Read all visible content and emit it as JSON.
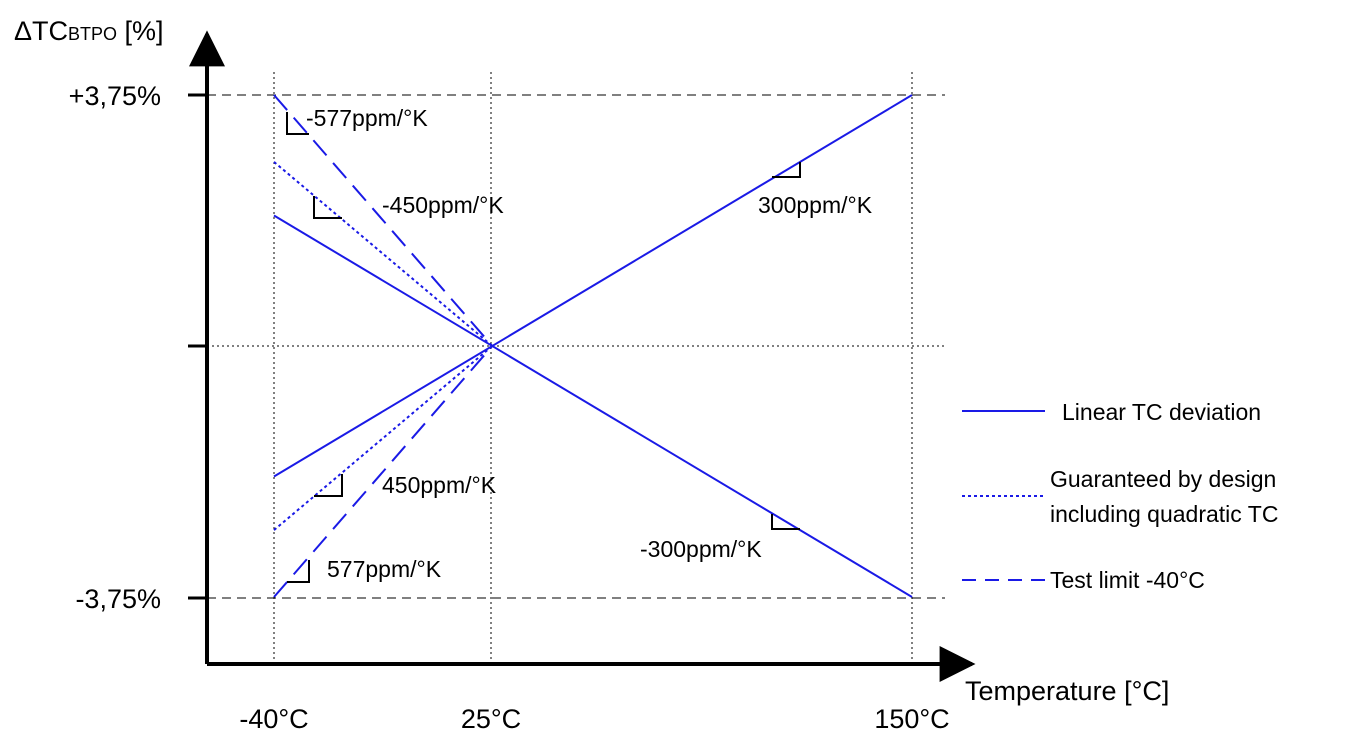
{
  "chart_data": {
    "type": "line",
    "ylabel_main": "ΔTC",
    "ylabel_sub": "BTPO",
    "ylabel_unit": " [%]",
    "xlabel": "Temperature [°C]",
    "x_ticks": [
      "-40°C",
      "25°C",
      "150°C"
    ],
    "y_ticks": [
      "+3,75%",
      "-3,75%"
    ],
    "xlim": [
      -40,
      150
    ],
    "ylim": [
      -3.75,
      3.75
    ],
    "colors": {
      "series": "#1a1ae6",
      "axis": "#000000",
      "grid": "#000000"
    },
    "series": [
      {
        "name": "Linear TC deviation",
        "style": "solid",
        "segments": [
          {
            "x": [
              -40,
              150
            ],
            "y": [
              -1.95,
              3.75
            ]
          },
          {
            "x": [
              -40,
              150
            ],
            "y": [
              1.95,
              -3.75
            ]
          }
        ]
      },
      {
        "name": "Guaranteed by design including quadratic TC",
        "style": "dotted",
        "segments": [
          {
            "x": [
              -40,
              25
            ],
            "y": [
              2.75,
              0
            ]
          },
          {
            "x": [
              -40,
              25
            ],
            "y": [
              -2.75,
              0
            ]
          }
        ]
      },
      {
        "name": "Test limit -40°C",
        "style": "dashed",
        "segments": [
          {
            "x": [
              -40,
              25
            ],
            "y": [
              3.75,
              0
            ]
          },
          {
            "x": [
              -40,
              25
            ],
            "y": [
              -3.75,
              0
            ]
          }
        ]
      }
    ],
    "annotations": [
      {
        "text": "-577ppm/°K"
      },
      {
        "text": "-450ppm/°K"
      },
      {
        "text": "300ppm/°K"
      },
      {
        "text": "450ppm/°K"
      },
      {
        "text": "-300ppm/°K"
      },
      {
        "text": "577ppm/°K"
      }
    ],
    "legend": [
      "Linear TC deviation",
      "Guaranteed by design",
      "including quadratic TC",
      "Test limit -40°C"
    ]
  }
}
